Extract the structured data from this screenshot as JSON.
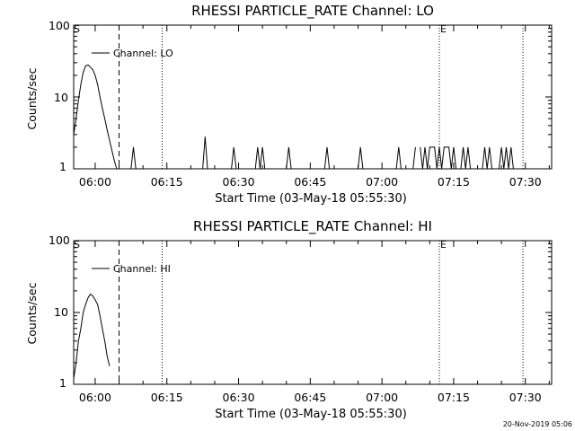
{
  "footer": {
    "timestamp": "20-Nov-2019 05:06"
  },
  "chart_data": [
    {
      "type": "line",
      "title": "RHESSI PARTICLE_RATE Channel: LO",
      "xlabel": "Start Time (03-May-18 05:55:30)",
      "ylabel": "Counts/sec",
      "yscale": "log",
      "ylim": [
        1,
        100
      ],
      "ytick_labels": [
        "1",
        "10",
        "100"
      ],
      "xlim": [
        "05:55:30",
        "07:35:30"
      ],
      "xtick_labels": [
        "06:00",
        "06:15",
        "06:30",
        "06:45",
        "07:00",
        "07:15",
        "07:30"
      ],
      "markers": [
        {
          "label": "S",
          "time": "05:55:30",
          "style": "none"
        },
        {
          "time": "06:05:00",
          "style": "dashed"
        },
        {
          "time": "06:14:00",
          "style": "dotted"
        },
        {
          "label": "E",
          "time": "07:12:00",
          "style": "dotted"
        },
        {
          "time": "07:29:30",
          "style": "dotted"
        }
      ],
      "series": [
        {
          "name": "Channel: LO",
          "x": [
            "05:55:30",
            "05:56:00",
            "05:56:30",
            "05:57:00",
            "05:57:30",
            "05:58:00",
            "05:58:30",
            "05:59:00",
            "05:59:30",
            "06:00:00",
            "06:00:30",
            "06:01:00",
            "06:01:30",
            "06:02:00",
            "06:02:30",
            "06:03:00",
            "06:03:30",
            "06:04:00",
            "06:04:30",
            "06:07:30",
            "06:08:00",
            "06:08:30",
            "06:22:30",
            "06:23:00",
            "06:23:30",
            "06:28:30",
            "06:29:00",
            "06:29:30",
            "06:33:30",
            "06:34:00",
            "06:34:30",
            "06:35:00",
            "06:35:30",
            "06:36:00",
            "06:40:00",
            "06:40:30",
            "06:41:00",
            "06:48:00",
            "06:48:30",
            "06:49:00",
            "06:55:00",
            "06:55:30",
            "06:56:00",
            "07:03:00",
            "07:03:30",
            "07:04:00",
            "07:06:30",
            "07:07:00",
            "07:08:00",
            "07:08:30",
            "07:09:00",
            "07:09:30",
            "07:10:00",
            "07:10:30",
            "07:11:00",
            "07:11:30",
            "07:12:00",
            "07:12:30",
            "07:13:00",
            "07:13:30",
            "07:14:00",
            "07:14:30",
            "07:15:00",
            "07:15:30",
            "07:16:30",
            "07:17:00",
            "07:17:30",
            "07:18:00",
            "07:18:30",
            "07:19:00",
            "07:21:00",
            "07:21:30",
            "07:22:00",
            "07:22:30",
            "07:23:00",
            "07:24:30",
            "07:25:00",
            "07:25:30",
            "07:26:00",
            "07:26:30",
            "07:27:00",
            "07:27:30",
            "07:28:00"
          ],
          "y": [
            3,
            5,
            9,
            15,
            22,
            27,
            28,
            26,
            24,
            20,
            15,
            10,
            7,
            5,
            3.5,
            2.5,
            1.8,
            1.3,
            1,
            1,
            2,
            1,
            1,
            2.8,
            1,
            1,
            2,
            1,
            1,
            2,
            1,
            2,
            1,
            1,
            1,
            2,
            1,
            1,
            2,
            1,
            1,
            2,
            1,
            1,
            2,
            1,
            1,
            2,
            2,
            1,
            2,
            1,
            2,
            2,
            2,
            1,
            2,
            1,
            2,
            2,
            2,
            1,
            2,
            1,
            1,
            2,
            1,
            2,
            1,
            1,
            1,
            2,
            1,
            2,
            1,
            1,
            2,
            1,
            2,
            1,
            2,
            1,
            1
          ]
        }
      ]
    },
    {
      "type": "line",
      "title": "RHESSI PARTICLE_RATE Channel: HI",
      "xlabel": "Start Time (03-May-18 05:55:30)",
      "ylabel": "Counts/sec",
      "yscale": "log",
      "ylim": [
        1,
        100
      ],
      "ytick_labels": [
        "1",
        "10",
        "100"
      ],
      "xlim": [
        "05:55:30",
        "07:35:30"
      ],
      "xtick_labels": [
        "06:00",
        "06:15",
        "06:30",
        "06:45",
        "07:00",
        "07:15",
        "07:30"
      ],
      "markers": [
        {
          "label": "S",
          "time": "05:55:30",
          "style": "none"
        },
        {
          "time": "06:05:00",
          "style": "dashed"
        },
        {
          "time": "06:14:00",
          "style": "dotted"
        },
        {
          "label": "E",
          "time": "07:12:00",
          "style": "dotted"
        },
        {
          "time": "07:29:30",
          "style": "dotted"
        }
      ],
      "series": [
        {
          "name": "Channel: HI",
          "x": [
            "05:55:30",
            "05:56:00",
            "05:56:30",
            "05:57:00",
            "05:57:30",
            "05:58:00",
            "05:58:30",
            "05:59:00",
            "05:59:30",
            "06:00:00",
            "06:00:30",
            "06:01:00",
            "06:01:30",
            "06:02:00",
            "06:02:30",
            "06:03:00"
          ],
          "y": [
            1.2,
            2,
            4,
            6,
            10,
            13,
            16,
            18,
            17,
            15,
            13,
            9,
            6,
            4,
            2.5,
            1.8
          ]
        }
      ]
    }
  ]
}
